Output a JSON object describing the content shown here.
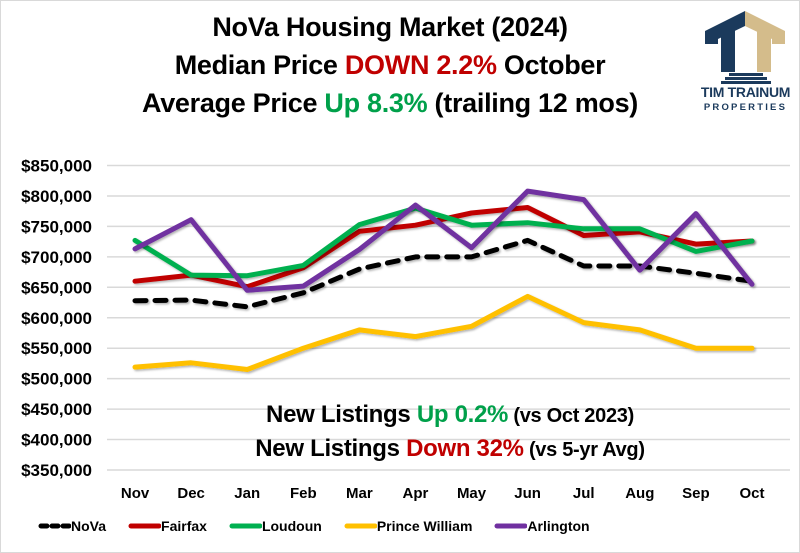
{
  "title": {
    "line1": "NoVa Housing Market (2024)",
    "line2_prefix": "Median Price ",
    "line2_highlight": "DOWN 2.2%",
    "line2_suffix": " October",
    "line3_prefix": "Average Price ",
    "line3_highlight": "Up 8.3%",
    "line3_suffix": " (trailing 12 mos)"
  },
  "logo": {
    "icon": "columned-house-icon",
    "line1": "TIM TRAINUM",
    "line2": "PROPERTIES",
    "colors": {
      "navy": "#1B3A5C",
      "tan": "#D4BC8B"
    }
  },
  "annotations": {
    "line1_prefix": "New Listings ",
    "line1_highlight": "Up 0.2%",
    "line1_suffix": " (vs Oct 2023)",
    "line2_prefix": "New Listings ",
    "line2_highlight": "Down 32%",
    "line2_suffix": " (vs 5-yr Avg)"
  },
  "chart_data": {
    "type": "line",
    "title": "NoVa Housing Market (2024) — Median Price",
    "xlabel": "",
    "ylabel": "",
    "categories": [
      "Nov",
      "Dec",
      "Jan",
      "Feb",
      "Mar",
      "Apr",
      "May",
      "Jun",
      "Jul",
      "Aug",
      "Sep",
      "Oct"
    ],
    "ylim": [
      350000,
      850000
    ],
    "y_ticks": [
      350000,
      400000,
      450000,
      500000,
      550000,
      600000,
      650000,
      700000,
      750000,
      800000,
      850000
    ],
    "y_tick_labels": [
      "$350,000",
      "$400,000",
      "$450,000",
      "$500,000",
      "$550,000",
      "$600,000",
      "$650,000",
      "$700,000",
      "$750,000",
      "$800,000",
      "$850,000"
    ],
    "grid": true,
    "legend_position": "bottom",
    "series": [
      {
        "name": "NoVa",
        "color": "#000000",
        "dashed": true,
        "values": [
          628000,
          629000,
          618000,
          641000,
          680000,
          700000,
          700000,
          727000,
          685000,
          685000,
          673000,
          660000
        ]
      },
      {
        "name": "Fairfax",
        "color": "#C00000",
        "dashed": false,
        "values": [
          660000,
          670000,
          651000,
          682000,
          742000,
          752000,
          772000,
          781000,
          735000,
          741000,
          721000,
          726000
        ]
      },
      {
        "name": "Loudoun",
        "color": "#00B050",
        "dashed": false,
        "values": [
          727000,
          670000,
          669000,
          686000,
          753000,
          780000,
          752000,
          756000,
          746000,
          746000,
          709000,
          726000
        ]
      },
      {
        "name": "Prince William",
        "color": "#FFC000",
        "dashed": false,
        "values": [
          519000,
          526000,
          515000,
          550000,
          580000,
          569000,
          586000,
          635000,
          592000,
          580000,
          550000,
          550000
        ]
      },
      {
        "name": "Arlington",
        "color": "#7030A0",
        "dashed": false,
        "values": [
          713000,
          761000,
          645000,
          652000,
          712000,
          785000,
          715000,
          808000,
          794000,
          678000,
          771000,
          655000
        ]
      }
    ]
  }
}
